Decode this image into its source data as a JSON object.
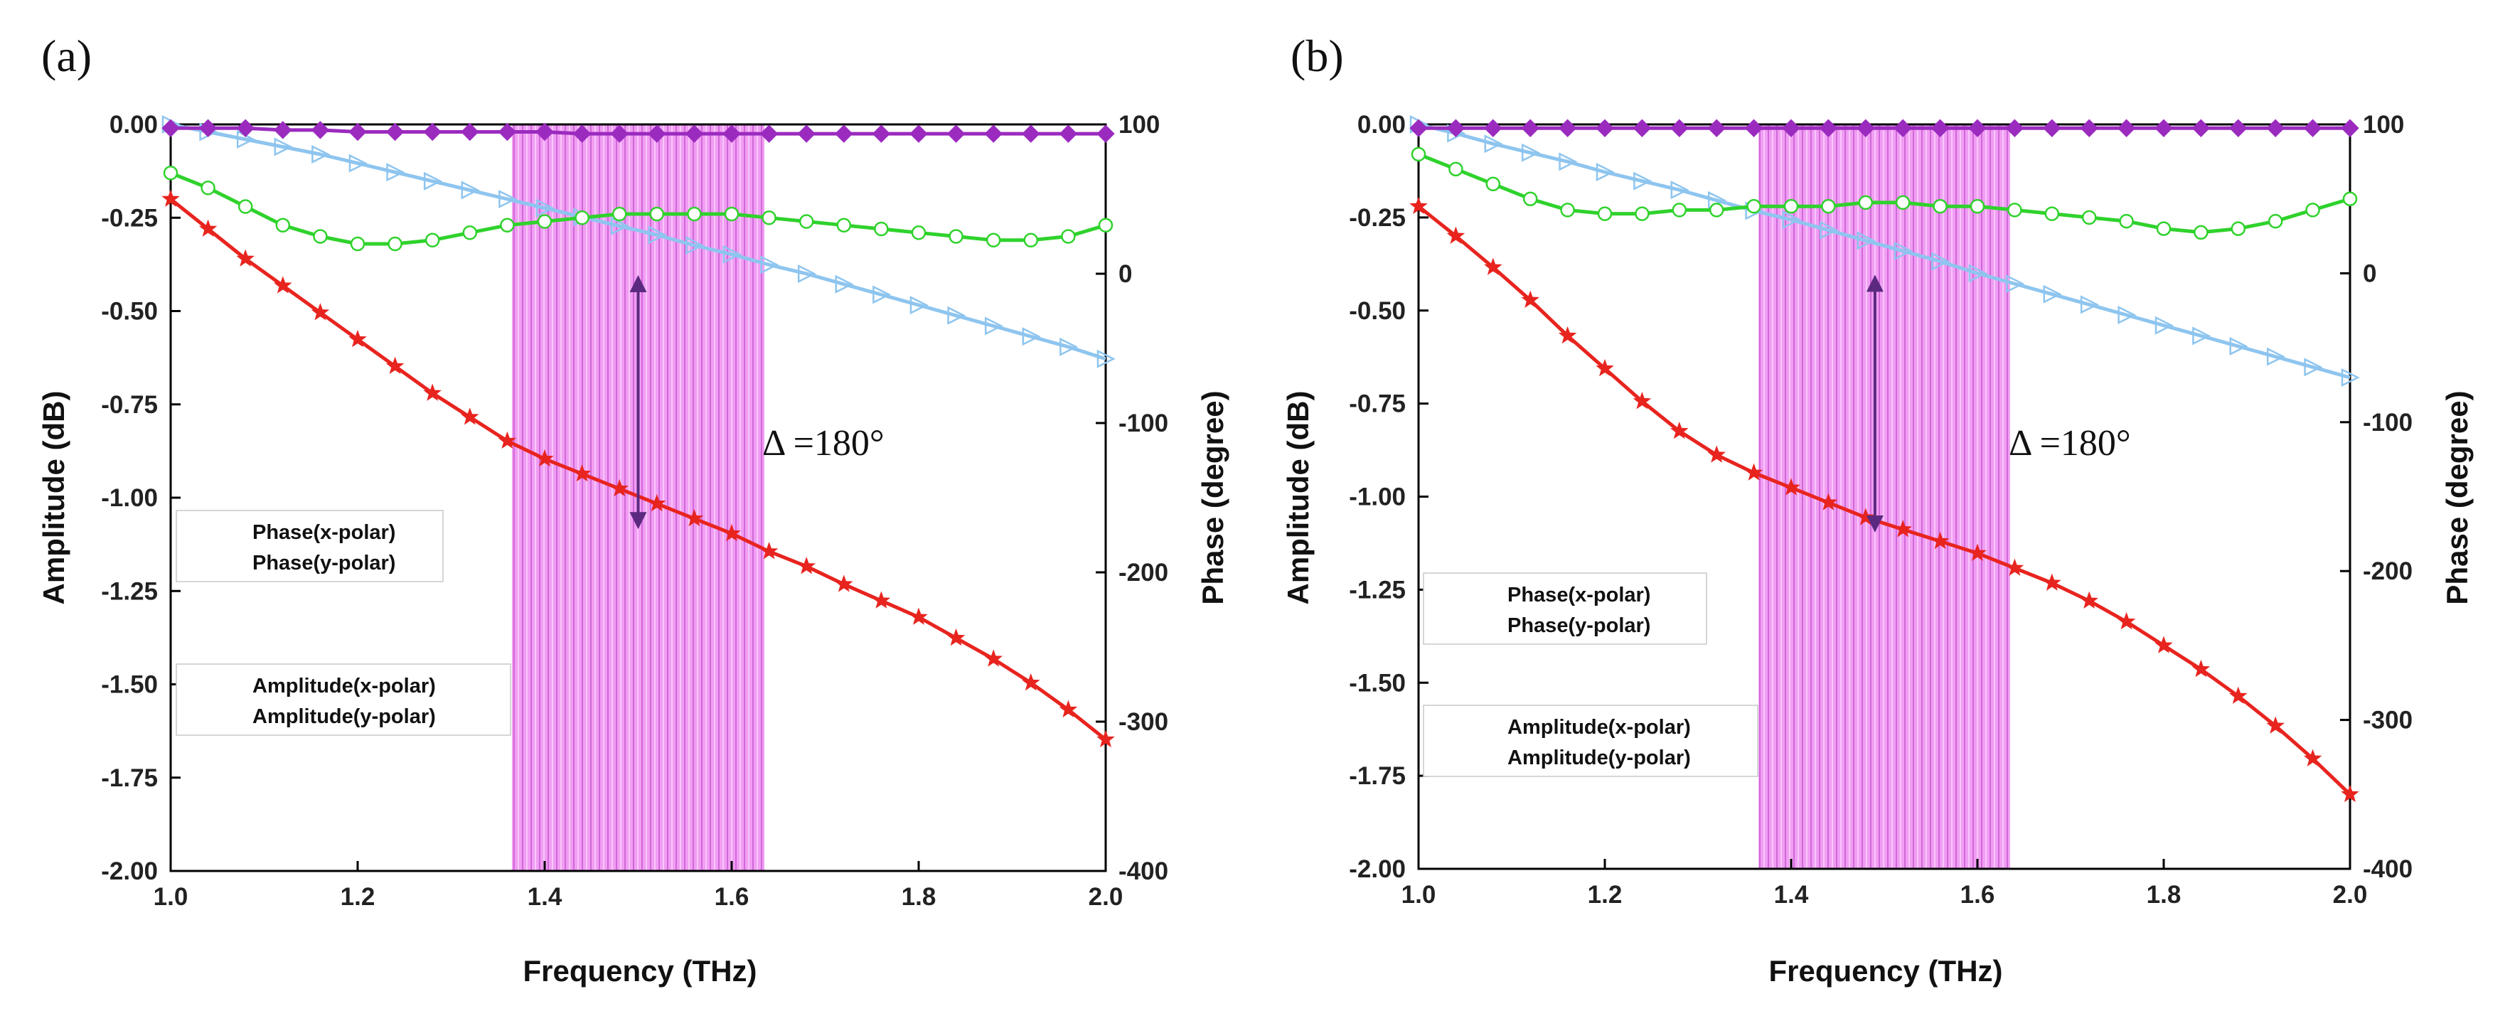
{
  "chart_data": [
    {
      "type": "line",
      "panel_label": "(a)",
      "xlabel": "Frequency (THz)",
      "ylabel_left": "Amplitude (dB)",
      "ylabel_right": "Phase (degree)",
      "xlim": [
        1.0,
        2.0
      ],
      "ylim_left": [
        -2.0,
        0.0
      ],
      "ylim_right": [
        -400,
        100
      ],
      "x_ticks": [
        "1.0",
        "1.2",
        "1.4",
        "1.6",
        "1.8",
        "2.0"
      ],
      "y_ticks_left": [
        "0.00",
        "-0.25",
        "-0.50",
        "-0.75",
        "-1.00",
        "-1.25",
        "-1.50",
        "-1.75",
        "-2.00"
      ],
      "y_ticks_right": [
        "100",
        "0",
        "-100",
        "-200",
        "-300",
        "-400"
      ],
      "shaded_band": {
        "x_start": 1.365,
        "x_end": 1.635,
        "color": "#e066e6"
      },
      "annotation": {
        "text": "Δ =180°",
        "x": 1.5,
        "from_y": 0,
        "to_y": -172
      },
      "legend_top": [
        "Phase(x-polar)",
        "Phase(y-polar)"
      ],
      "legend_bottom": [
        "Amplitude(x-polar)",
        "Amplitude(y-polar)"
      ],
      "series": [
        {
          "name": "Phase(x-polar)",
          "axis": "right",
          "color": "#8ec5ef",
          "marker": "triangle",
          "x": [
            1.0,
            1.04,
            1.08,
            1.12,
            1.16,
            1.2,
            1.24,
            1.28,
            1.32,
            1.36,
            1.4,
            1.44,
            1.48,
            1.52,
            1.56,
            1.6,
            1.64,
            1.68,
            1.72,
            1.76,
            1.8,
            1.84,
            1.88,
            1.92,
            1.96,
            2.0
          ],
          "values": [
            100,
            95,
            90,
            85,
            80,
            74,
            68,
            62,
            56,
            50,
            44,
            38,
            32,
            26,
            19,
            13,
            6,
            0,
            -7,
            -14,
            -21,
            -28,
            -35,
            -42,
            -49,
            -57
          ]
        },
        {
          "name": "Phase(y-polar)",
          "axis": "right",
          "color": "#e8241f",
          "marker": "star",
          "x": [
            1.0,
            1.04,
            1.08,
            1.12,
            1.16,
            1.2,
            1.24,
            1.28,
            1.32,
            1.36,
            1.4,
            1.44,
            1.48,
            1.52,
            1.56,
            1.6,
            1.64,
            1.68,
            1.72,
            1.76,
            1.8,
            1.84,
            1.88,
            1.92,
            1.96,
            2.0
          ],
          "values": [
            50,
            30,
            10,
            -8,
            -26,
            -44,
            -62,
            -80,
            -96,
            -112,
            -124,
            -134,
            -144,
            -154,
            -164,
            -174,
            -186,
            -196,
            -208,
            -219,
            -230,
            -244,
            -258,
            -274,
            -292,
            -312
          ]
        },
        {
          "name": "Amplitude(x-polar)",
          "axis": "left",
          "color": "#9b2bbf",
          "marker": "diamond",
          "x": [
            1.0,
            1.04,
            1.08,
            1.12,
            1.16,
            1.2,
            1.24,
            1.28,
            1.32,
            1.36,
            1.4,
            1.44,
            1.48,
            1.52,
            1.56,
            1.6,
            1.64,
            1.68,
            1.72,
            1.76,
            1.8,
            1.84,
            1.88,
            1.92,
            1.96,
            2.0
          ],
          "values": [
            -0.01,
            -0.01,
            -0.01,
            -0.015,
            -0.015,
            -0.02,
            -0.02,
            -0.02,
            -0.02,
            -0.02,
            -0.02,
            -0.025,
            -0.025,
            -0.025,
            -0.025,
            -0.025,
            -0.025,
            -0.025,
            -0.025,
            -0.025,
            -0.025,
            -0.025,
            -0.025,
            -0.025,
            -0.025,
            -0.025
          ]
        },
        {
          "name": "Amplitude(y-polar)",
          "axis": "left",
          "color": "#2fd22c",
          "marker": "circle",
          "x": [
            1.0,
            1.04,
            1.08,
            1.12,
            1.16,
            1.2,
            1.24,
            1.28,
            1.32,
            1.36,
            1.4,
            1.44,
            1.48,
            1.52,
            1.56,
            1.6,
            1.64,
            1.68,
            1.72,
            1.76,
            1.8,
            1.84,
            1.88,
            1.92,
            1.96,
            2.0
          ],
          "values": [
            -0.13,
            -0.17,
            -0.22,
            -0.27,
            -0.3,
            -0.32,
            -0.32,
            -0.31,
            -0.29,
            -0.27,
            -0.26,
            -0.25,
            -0.24,
            -0.24,
            -0.24,
            -0.24,
            -0.25,
            -0.26,
            -0.27,
            -0.28,
            -0.29,
            -0.3,
            -0.31,
            -0.31,
            -0.3,
            -0.27
          ]
        }
      ]
    },
    {
      "type": "line",
      "panel_label": "(b)",
      "xlabel": "Frequency (THz)",
      "ylabel_left": "Amplitude (dB)",
      "ylabel_right": "Phase (degree)",
      "xlim": [
        1.0,
        2.0
      ],
      "ylim_left": [
        -2.0,
        0.0
      ],
      "ylim_right": [
        -400,
        100
      ],
      "x_ticks": [
        "1.0",
        "1.2",
        "1.4",
        "1.6",
        "1.8",
        "2.0"
      ],
      "y_ticks_left": [
        "0.00",
        "-0.25",
        "-0.50",
        "-0.75",
        "-1.00",
        "-1.25",
        "-1.50",
        "-1.75",
        "-2.00"
      ],
      "y_ticks_right": [
        "100",
        "0",
        "-100",
        "-200",
        "-300",
        "-400"
      ],
      "shaded_band": {
        "x_start": 1.365,
        "x_end": 1.635,
        "color": "#e066e6"
      },
      "annotation": {
        "text": "Δ =180°",
        "x": 1.49,
        "from_y": 0,
        "to_y": -175
      },
      "legend_top": [
        "Phase(x-polar)",
        "Phase(y-polar)"
      ],
      "legend_bottom": [
        "Amplitude(x-polar)",
        "Amplitude(y-polar)"
      ],
      "series": [
        {
          "name": "Phase(x-polar)",
          "axis": "right",
          "color": "#8ec5ef",
          "marker": "triangle",
          "x": [
            1.0,
            1.04,
            1.08,
            1.12,
            1.16,
            1.2,
            1.24,
            1.28,
            1.32,
            1.36,
            1.4,
            1.44,
            1.48,
            1.52,
            1.56,
            1.6,
            1.64,
            1.68,
            1.72,
            1.76,
            1.8,
            1.84,
            1.88,
            1.92,
            1.96,
            2.0
          ],
          "values": [
            100,
            94,
            87,
            81,
            75,
            68,
            62,
            56,
            49,
            42,
            36,
            29,
            22,
            15,
            8,
            0,
            -7,
            -14,
            -21,
            -28,
            -35,
            -42,
            -49,
            -56,
            -63,
            -70
          ]
        },
        {
          "name": "Phase(y-polar)",
          "axis": "right",
          "color": "#e8241f",
          "marker": "star",
          "x": [
            1.0,
            1.04,
            1.08,
            1.12,
            1.16,
            1.2,
            1.24,
            1.28,
            1.32,
            1.36,
            1.4,
            1.44,
            1.48,
            1.52,
            1.56,
            1.6,
            1.64,
            1.68,
            1.72,
            1.76,
            1.8,
            1.84,
            1.88,
            1.92,
            1.96,
            2.0
          ],
          "values": [
            45,
            25,
            4,
            -18,
            -42,
            -64,
            -86,
            -106,
            -122,
            -134,
            -144,
            -154,
            -164,
            -172,
            -180,
            -188,
            -198,
            -208,
            -220,
            -234,
            -250,
            -266,
            -284,
            -304,
            -326,
            -350
          ]
        },
        {
          "name": "Amplitude(x-polar)",
          "axis": "left",
          "color": "#9b2bbf",
          "marker": "diamond",
          "x": [
            1.0,
            1.04,
            1.08,
            1.12,
            1.16,
            1.2,
            1.24,
            1.28,
            1.32,
            1.36,
            1.4,
            1.44,
            1.48,
            1.52,
            1.56,
            1.6,
            1.64,
            1.68,
            1.72,
            1.76,
            1.8,
            1.84,
            1.88,
            1.92,
            1.96,
            2.0
          ],
          "values": [
            -0.01,
            -0.01,
            -0.01,
            -0.01,
            -0.01,
            -0.01,
            -0.01,
            -0.01,
            -0.01,
            -0.01,
            -0.01,
            -0.01,
            -0.01,
            -0.01,
            -0.01,
            -0.01,
            -0.01,
            -0.01,
            -0.01,
            -0.01,
            -0.01,
            -0.01,
            -0.01,
            -0.01,
            -0.01,
            -0.01
          ]
        },
        {
          "name": "Amplitude(y-polar)",
          "axis": "left",
          "color": "#2fd22c",
          "marker": "circle",
          "x": [
            1.0,
            1.04,
            1.08,
            1.12,
            1.16,
            1.2,
            1.24,
            1.28,
            1.32,
            1.36,
            1.4,
            1.44,
            1.48,
            1.52,
            1.56,
            1.6,
            1.64,
            1.68,
            1.72,
            1.76,
            1.8,
            1.84,
            1.88,
            1.92,
            1.96,
            2.0
          ],
          "values": [
            -0.08,
            -0.12,
            -0.16,
            -0.2,
            -0.23,
            -0.24,
            -0.24,
            -0.23,
            -0.23,
            -0.22,
            -0.22,
            -0.22,
            -0.21,
            -0.21,
            -0.22,
            -0.22,
            -0.23,
            -0.24,
            -0.25,
            -0.26,
            -0.28,
            -0.29,
            -0.28,
            -0.26,
            -0.23,
            -0.2
          ]
        }
      ]
    }
  ]
}
